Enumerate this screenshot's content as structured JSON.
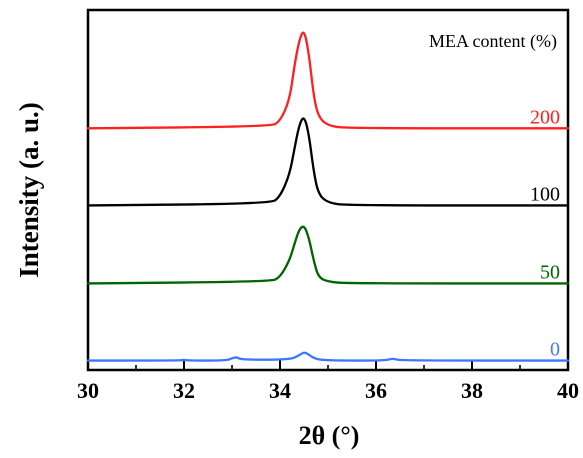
{
  "chart_data": {
    "type": "line",
    "title": "",
    "xlabel": "2θ (°)",
    "ylabel": "Intensity (a. u.)",
    "xlim": [
      30,
      40
    ],
    "x_ticks": [
      30,
      32,
      34,
      36,
      38,
      40
    ],
    "x_tick_labels": [
      "30",
      "32",
      "34",
      "36",
      "38",
      "40"
    ],
    "grid": false,
    "legend_title": "MEA content (%)",
    "legend_position": "top-right",
    "y_scale": "arbitrary units, stacked with vertical offsets",
    "series": [
      {
        "name": "200",
        "color": "#ff2020",
        "baseline": 2.82,
        "x": [
          30.0,
          33.8,
          34.0,
          34.2,
          34.3,
          34.4,
          34.5,
          34.6,
          34.7,
          34.8,
          35.0,
          35.4,
          40.0
        ],
        "y": [
          2.82,
          2.84,
          2.9,
          3.15,
          3.55,
          3.85,
          3.98,
          3.7,
          3.2,
          2.95,
          2.85,
          2.82,
          2.82
        ]
      },
      {
        "name": "100",
        "color": "#000000",
        "baseline": 1.92,
        "x": [
          30.0,
          33.8,
          34.0,
          34.2,
          34.3,
          34.4,
          34.5,
          34.6,
          34.7,
          34.8,
          35.0,
          35.4,
          40.0
        ],
        "y": [
          1.92,
          1.94,
          2.02,
          2.28,
          2.58,
          2.86,
          2.97,
          2.76,
          2.32,
          2.05,
          1.95,
          1.92,
          1.92
        ]
      },
      {
        "name": "50",
        "color": "#006400",
        "baseline": 1.01,
        "x": [
          30.0,
          33.8,
          34.0,
          34.2,
          34.3,
          34.4,
          34.5,
          34.6,
          34.7,
          34.8,
          35.0,
          35.4,
          40.0
        ],
        "y": [
          1.01,
          1.03,
          1.08,
          1.28,
          1.47,
          1.64,
          1.69,
          1.55,
          1.28,
          1.08,
          1.03,
          1.01,
          1.01
        ]
      },
      {
        "name": "0",
        "color": "#3c78ff",
        "baseline": 0.11,
        "x": [
          30.0,
          31.9,
          32.0,
          32.1,
          32.9,
          33.0,
          33.1,
          33.2,
          34.2,
          34.4,
          34.5,
          34.6,
          34.7,
          34.9,
          36.2,
          36.3,
          36.4,
          36.5,
          40.0
        ],
        "y": [
          0.11,
          0.11,
          0.12,
          0.11,
          0.11,
          0.14,
          0.15,
          0.12,
          0.12,
          0.17,
          0.21,
          0.18,
          0.14,
          0.11,
          0.11,
          0.13,
          0.13,
          0.11,
          0.11
        ]
      }
    ]
  }
}
